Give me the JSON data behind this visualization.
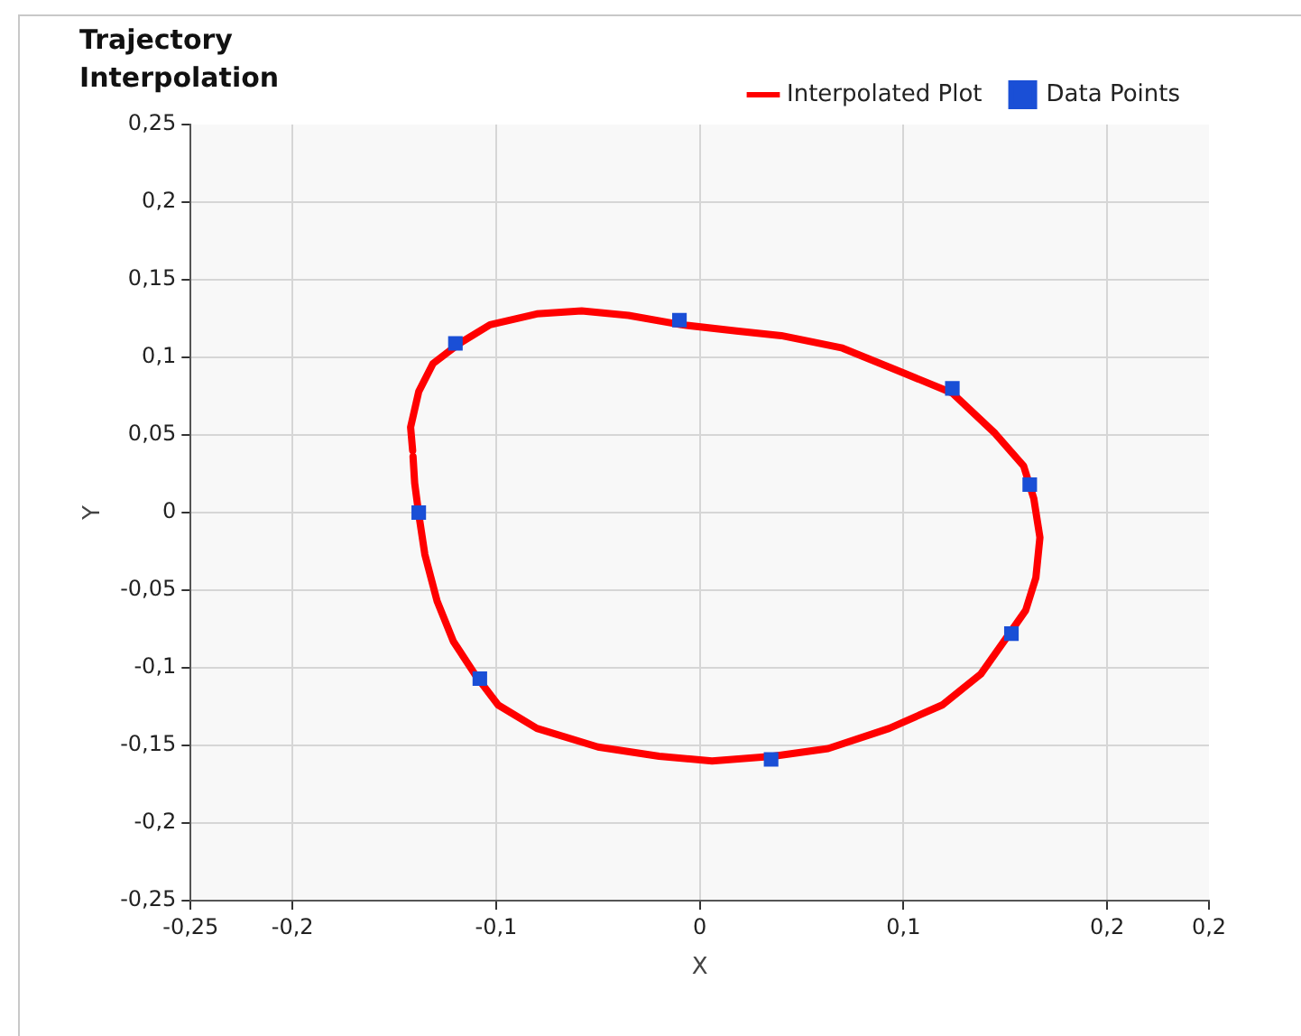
{
  "chart_data": {
    "type": "scatter",
    "title": "Trajectory\nInterpolation",
    "xlabel": "X",
    "ylabel": "Y",
    "xlim": [
      -0.25,
      0.25
    ],
    "xticks": [
      {
        "value": -0.25,
        "label": "-0,25"
      },
      {
        "value": -0.2,
        "label": "-0,2"
      },
      {
        "value": -0.1,
        "label": "-0,1"
      },
      0,
      {
        "value": 0.1,
        "label": "0,1"
      },
      {
        "value": 0.2,
        "label": "0,2"
      },
      {
        "value": 0.25,
        "label": "0,2"
      }
    ],
    "ylim": [
      -0.25,
      0.25
    ],
    "yticks": [
      {
        "value": -0.25,
        "label": "-0,25"
      },
      {
        "value": -0.2,
        "label": "-0,2"
      },
      {
        "value": -0.15,
        "label": "-0,15"
      },
      {
        "value": -0.1,
        "label": "-0,1"
      },
      {
        "value": -0.05,
        "label": "-0,05"
      },
      0,
      {
        "value": 0.05,
        "label": "0,05"
      },
      {
        "value": 0.1,
        "label": "0,1"
      },
      {
        "value": 0.15,
        "label": "0,15"
      },
      {
        "value": 0.2,
        "label": "0,2"
      },
      {
        "value": 0.25,
        "label": "0,25"
      }
    ],
    "grid": true,
    "legend": "top right",
    "series": [
      {
        "name": "Interpolated Plot",
        "type": "line",
        "marker": "none",
        "line_style": "solid",
        "color": "#ff0000",
        "x": [
          -0.141,
          -0.142,
          -0.138,
          -0.131,
          -0.118,
          -0.103,
          -0.08,
          -0.058,
          -0.035,
          -0.009,
          0.018,
          0.04,
          0.07,
          0.1,
          0.124,
          0.145,
          0.159,
          0.164,
          0.167,
          0.165,
          0.16,
          0.152,
          0.138,
          0.119,
          0.093,
          0.063,
          0.036,
          0.006,
          -0.02,
          -0.05,
          -0.08,
          -0.099,
          -0.11,
          -0.121,
          -0.129,
          -0.135,
          -0.138,
          -0.14,
          -0.1408
        ],
        "values": [
          0.04,
          0.055,
          0.078,
          0.096,
          0.109,
          0.121,
          0.128,
          0.13,
          0.127,
          0.121,
          0.117,
          0.114,
          0.106,
          0.09,
          0.077,
          0.051,
          0.03,
          0.009,
          -0.016,
          -0.042,
          -0.063,
          -0.078,
          -0.104,
          -0.124,
          -0.139,
          -0.152,
          -0.157,
          -0.16,
          -0.157,
          -0.151,
          -0.139,
          -0.124,
          -0.105,
          -0.083,
          -0.057,
          -0.027,
          -0.001,
          0.019,
          0.036
        ]
      },
      {
        "name": "Data Points",
        "type": "scatter",
        "marker": "square",
        "color": "#1a4fd6",
        "x": [
          -0.12,
          -0.01,
          0.124,
          0.162,
          0.153,
          0.035,
          -0.108,
          -0.138
        ],
        "values": [
          0.109,
          0.124,
          0.08,
          0.018,
          -0.078,
          -0.159,
          -0.107,
          0
        ]
      }
    ]
  }
}
